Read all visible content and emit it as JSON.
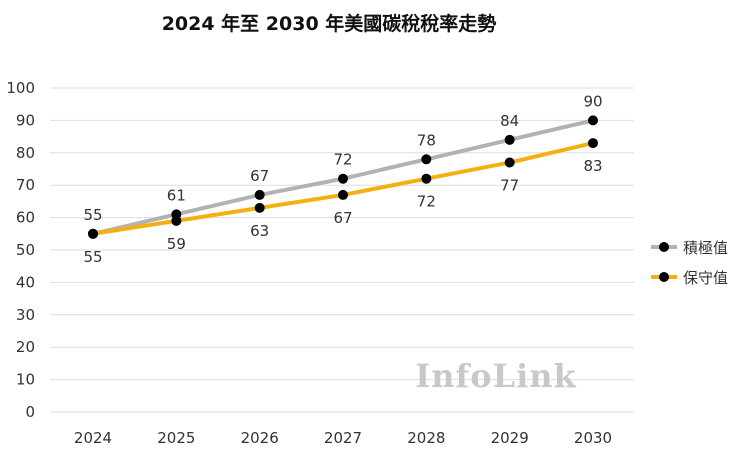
{
  "chart_data": {
    "type": "line",
    "title": "2024 年至 2030 年美國碳稅稅率走勢",
    "xlabel": "",
    "ylabel": "",
    "x": [
      "2024",
      "2025",
      "2026",
      "2027",
      "2028",
      "2029",
      "2030"
    ],
    "ylim": [
      0,
      100
    ],
    "yticks": [
      0,
      10,
      20,
      30,
      40,
      50,
      60,
      70,
      80,
      90,
      100
    ],
    "grid": true,
    "legend_position": "right",
    "series": [
      {
        "name": "積極值",
        "color": "#b2b2b2",
        "values": [
          55,
          61,
          67,
          72,
          78,
          84,
          90
        ],
        "label_position": "above"
      },
      {
        "name": "保守值",
        "color": "#f2b110",
        "values": [
          55,
          59,
          63,
          67,
          72,
          77,
          83
        ],
        "label_position": "below"
      }
    ],
    "marker_color": "#000000",
    "watermark": "InfoLink"
  }
}
